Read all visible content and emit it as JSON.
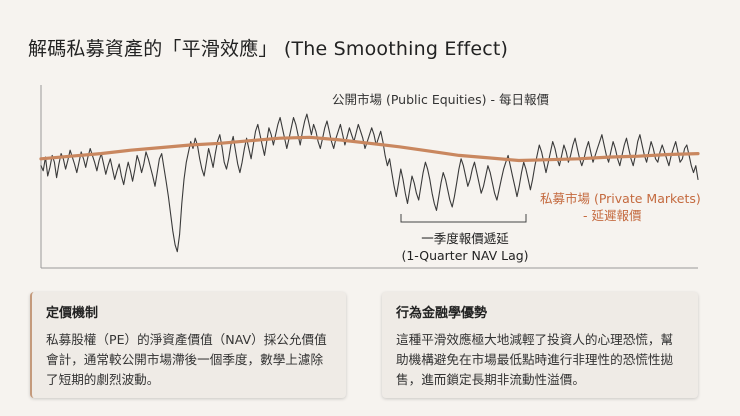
{
  "title": "解碼私募資產的「平滑效應」 (The Smoothing Effect)",
  "chart_data": {
    "type": "line",
    "ylim": [
      0,
      100
    ],
    "annotations": {
      "public_line1": "公開市場 (Public Equities) - 每日報價",
      "private_line1": "私募市場 (Private Markets)",
      "private_line2": "- 延遲報價",
      "lag_line1": "一季度報價遞延",
      "lag_line2": "(1-Quarter NAV Lag)"
    },
    "series": [
      {
        "values": [
          56,
          53,
          61,
          50,
          55,
          62,
          58,
          49,
          57,
          63,
          60,
          54,
          59,
          65,
          61,
          57,
          52,
          58,
          64,
          60,
          55,
          61,
          66,
          62,
          58,
          53,
          59,
          63,
          57,
          51,
          56,
          60,
          54,
          48,
          53,
          57,
          50,
          45,
          52,
          58,
          53,
          47,
          54,
          62,
          58,
          52,
          57,
          64,
          60,
          55,
          50,
          44,
          52,
          60,
          63,
          55,
          47,
          38,
          28,
          18,
          10,
          6,
          16,
          34,
          48,
          58,
          64,
          70,
          66,
          72,
          68,
          60,
          54,
          50,
          58,
          66,
          61,
          55,
          63,
          70,
          74,
          67,
          58,
          54,
          60,
          68,
          73,
          65,
          57,
          52,
          58,
          66,
          72,
          66,
          60,
          68,
          76,
          80,
          74,
          68,
          62,
          70,
          78,
          74,
          68,
          74,
          80,
          84,
          78,
          72,
          66,
          72,
          78,
          84,
          80,
          74,
          68,
          76,
          82,
          86,
          80,
          74,
          80,
          76,
          70,
          66,
          72,
          78,
          82,
          76,
          70,
          66,
          72,
          76,
          80,
          74,
          68,
          73,
          78,
          74,
          70,
          75,
          80,
          76,
          72,
          66,
          70,
          74,
          78,
          74,
          68,
          72,
          76,
          70,
          62,
          56,
          60,
          52,
          44,
          38,
          46,
          54,
          48,
          40,
          34,
          42,
          50,
          46,
          40,
          36,
          44,
          52,
          58,
          54,
          48,
          40,
          34,
          30,
          38,
          46,
          52,
          48,
          42,
          36,
          32,
          38,
          46,
          54,
          60,
          56,
          50,
          44,
          48,
          54,
          58,
          52,
          46,
          40,
          44,
          50,
          56,
          52,
          46,
          40,
          36,
          42,
          48,
          54,
          58,
          62,
          56,
          50,
          44,
          38,
          44,
          52,
          58,
          54,
          48,
          42,
          48,
          56,
          62,
          68,
          64,
          58,
          52,
          58,
          64,
          70,
          66,
          60,
          56,
          62,
          68,
          64,
          58,
          62,
          68,
          72,
          66,
          60,
          56,
          60,
          66,
          70,
          64,
          58,
          62,
          66,
          70,
          74,
          68,
          62,
          58,
          64,
          70,
          66,
          60,
          56,
          62,
          68,
          72,
          66,
          60,
          56,
          62,
          70,
          74,
          68,
          62,
          58,
          64,
          70,
          66,
          60,
          58,
          64,
          68,
          64,
          60,
          56,
          62,
          66,
          70,
          64,
          58,
          60,
          66,
          68,
          62,
          56,
          52,
          56,
          48
        ]
      },
      {
        "values": [
          60,
          61.5,
          63,
          65,
          66.5,
          68,
          69,
          70.5,
          72,
          72.5,
          71,
          69,
          67,
          64.5,
          62,
          60.5,
          59,
          59.5,
          60,
          61,
          61.5,
          62.5,
          63
        ]
      }
    ]
  }
}
